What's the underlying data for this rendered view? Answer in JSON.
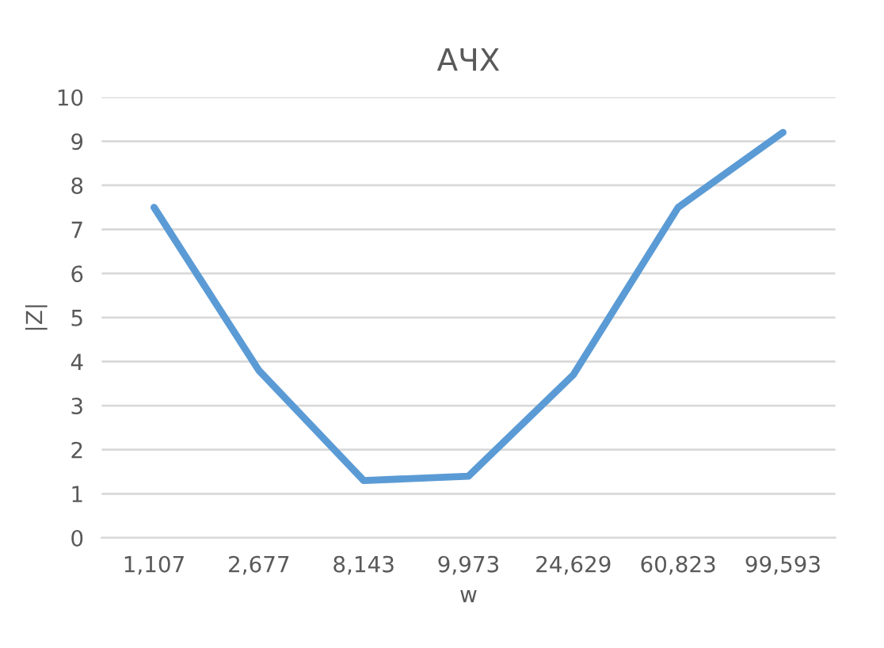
{
  "chart_data": {
    "type": "line",
    "title": "АЧХ",
    "xlabel": "w",
    "ylabel": "|Z|",
    "categories": [
      "1,107",
      "2,677",
      "8,143",
      "9,973",
      "24,629",
      "60,823",
      "99,593"
    ],
    "series": [
      {
        "color": "#5b9bd5",
        "values": [
          7.5,
          3.8,
          1.3,
          1.4,
          3.7,
          7.5,
          9.2
        ]
      }
    ],
    "ylim": [
      0,
      10
    ],
    "yticks": [
      0,
      1,
      2,
      3,
      4,
      5,
      6,
      7,
      8,
      9,
      10
    ],
    "grid": "y",
    "marker": "none",
    "line_style": "solid"
  }
}
